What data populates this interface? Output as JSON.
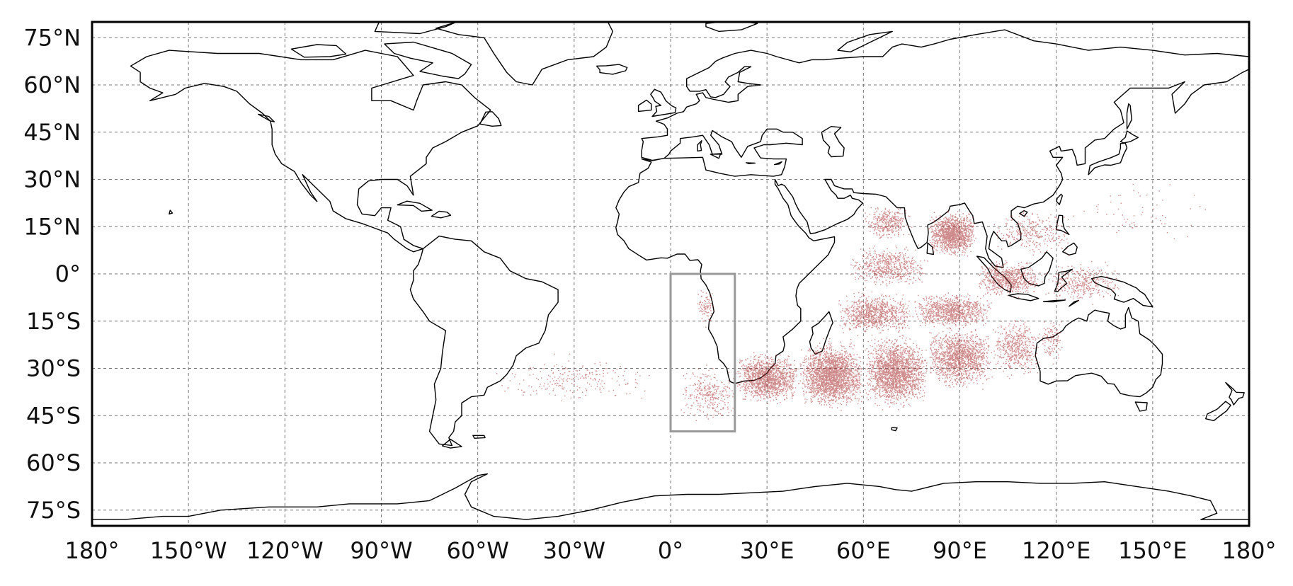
{
  "map": {
    "projection": "plate-carree",
    "lon_range": [
      -180,
      180
    ],
    "lat_range": [
      -80,
      80
    ],
    "grid": "on",
    "grid_style": "dashed",
    "lat_ticks": [
      {
        "value": 75,
        "label": "75°N"
      },
      {
        "value": 60,
        "label": "60°N"
      },
      {
        "value": 45,
        "label": "45°N"
      },
      {
        "value": 30,
        "label": "30°N"
      },
      {
        "value": 15,
        "label": "15°N"
      },
      {
        "value": 0,
        "label": "0°"
      },
      {
        "value": -15,
        "label": "15°S"
      },
      {
        "value": -30,
        "label": "30°S"
      },
      {
        "value": -45,
        "label": "45°S"
      },
      {
        "value": -60,
        "label": "60°S"
      },
      {
        "value": -75,
        "label": "75°S"
      }
    ],
    "lon_ticks": [
      {
        "value": -180,
        "label": "180°"
      },
      {
        "value": -150,
        "label": "150°W"
      },
      {
        "value": -120,
        "label": "120°W"
      },
      {
        "value": -90,
        "label": "90°W"
      },
      {
        "value": -60,
        "label": "60°W"
      },
      {
        "value": -30,
        "label": "30°W"
      },
      {
        "value": 0,
        "label": "0°"
      },
      {
        "value": 30,
        "label": "30°E"
      },
      {
        "value": 60,
        "label": "60°E"
      },
      {
        "value": 90,
        "label": "90°E"
      },
      {
        "value": 120,
        "label": "120°E"
      },
      {
        "value": 150,
        "label": "150°E"
      },
      {
        "value": 180,
        "label": "180°"
      }
    ],
    "release_box": {
      "lon_min": 0,
      "lon_max": 20,
      "lat_min": -50,
      "lat_max": 0,
      "color": "#999999"
    },
    "colors": {
      "particles": "#a52a2a",
      "coastline": "#000000",
      "grid": "#777777",
      "frame": "#000000"
    },
    "particle_density": [
      {
        "lon": [
          3,
          20
        ],
        "lat": [
          -48,
          -28
        ],
        "n": 300
      },
      {
        "lon": [
          20,
          40
        ],
        "lat": [
          -42,
          -24
        ],
        "n": 1400
      },
      {
        "lon": [
          40,
          60
        ],
        "lat": [
          -44,
          -20
        ],
        "n": 2200
      },
      {
        "lon": [
          60,
          80
        ],
        "lat": [
          -44,
          -18
        ],
        "n": 2000
      },
      {
        "lon": [
          80,
          100
        ],
        "lat": [
          -38,
          -15
        ],
        "n": 1400
      },
      {
        "lon": [
          100,
          115
        ],
        "lat": [
          -34,
          -12
        ],
        "n": 500
      },
      {
        "lon": [
          115,
          122
        ],
        "lat": [
          -30,
          -12
        ],
        "n": 120
      },
      {
        "lon": [
          52,
          75
        ],
        "lat": [
          -20,
          -5
        ],
        "n": 900
      },
      {
        "lon": [
          75,
          100
        ],
        "lat": [
          -18,
          -5
        ],
        "n": 900
      },
      {
        "lon": [
          55,
          80
        ],
        "lat": [
          -5,
          10
        ],
        "n": 600
      },
      {
        "lon": [
          60,
          75
        ],
        "lat": [
          10,
          23
        ],
        "n": 350
      },
      {
        "lon": [
          80,
          95
        ],
        "lat": [
          5,
          21
        ],
        "n": 1300
      },
      {
        "lon": [
          95,
          115
        ],
        "lat": [
          -8,
          5
        ],
        "n": 700
      },
      {
        "lon": [
          100,
          125
        ],
        "lat": [
          5,
          22
        ],
        "n": 300
      },
      {
        "lon": [
          115,
          140
        ],
        "lat": [
          -10,
          5
        ],
        "n": 350
      },
      {
        "lon": [
          120,
          170
        ],
        "lat": [
          8,
          32
        ],
        "n": 60
      },
      {
        "lon": [
          -55,
          -5
        ],
        "lat": [
          -42,
          -25
        ],
        "n": 220
      },
      {
        "lon": [
          8,
          14
        ],
        "lat": [
          -18,
          -2
        ],
        "n": 90
      }
    ]
  }
}
